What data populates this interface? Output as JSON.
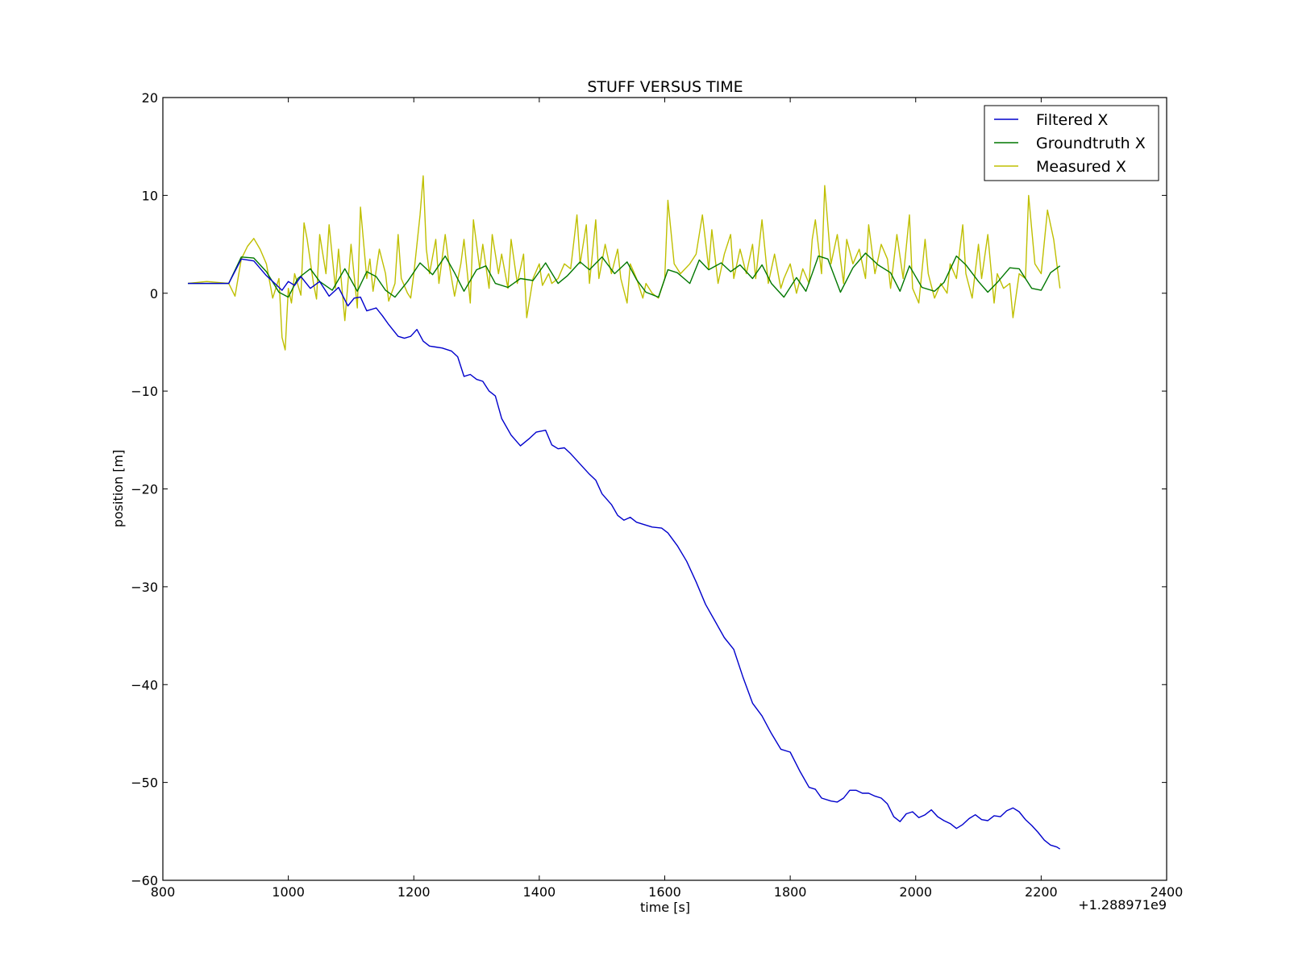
{
  "chart_data": {
    "type": "line",
    "title": "STUFF VERSUS TIME",
    "xlabel": "time [s]",
    "ylabel": "position [m]",
    "x_offset_label": "+1.288971e9",
    "xlim": [
      800,
      2400
    ],
    "ylim": [
      -60,
      20
    ],
    "x_ticks": [
      800,
      1000,
      1200,
      1400,
      1600,
      1800,
      2000,
      2200,
      2400
    ],
    "x_tick_labels": [
      "800",
      "1000",
      "1200",
      "1400",
      "1600",
      "1800",
      "2000",
      "2200",
      "2400"
    ],
    "y_ticks": [
      20,
      10,
      0,
      -10,
      -20,
      -30,
      -40,
      -50,
      -60
    ],
    "y_tick_labels": [
      "20",
      "10",
      "0",
      "−10",
      "−20",
      "−30",
      "−40",
      "−50",
      "−60"
    ],
    "grid": false,
    "legend_position": "top-right",
    "series": [
      {
        "name": "Filtered X",
        "color": "#0000cc",
        "x": [
          840,
          905,
          925,
          945,
          965,
          980,
          990,
          1000,
          1010,
          1020,
          1035,
          1050,
          1065,
          1080,
          1095,
          1105,
          1115,
          1125,
          1140,
          1150,
          1160,
          1175,
          1185,
          1195,
          1205,
          1215,
          1225,
          1235,
          1245,
          1260,
          1270,
          1280,
          1290,
          1300,
          1310,
          1320,
          1330,
          1340,
          1355,
          1370,
          1385,
          1395,
          1410,
          1420,
          1430,
          1440,
          1450,
          1470,
          1480,
          1490,
          1500,
          1515,
          1525,
          1535,
          1545,
          1555,
          1570,
          1580,
          1595,
          1605,
          1620,
          1635,
          1650,
          1665,
          1680,
          1695,
          1710,
          1725,
          1740,
          1755,
          1770,
          1785,
          1800,
          1815,
          1830,
          1840,
          1850,
          1865,
          1875,
          1885,
          1895,
          1905,
          1915,
          1925,
          1935,
          1945,
          1955,
          1965,
          1975,
          1985,
          1995,
          2005,
          2015,
          2025,
          2035,
          2045,
          2055,
          2065,
          2075,
          2085,
          2095,
          2105,
          2115,
          2125,
          2135,
          2145,
          2155,
          2165,
          2175,
          2185,
          2195,
          2205,
          2215,
          2225,
          2230
        ],
        "y": [
          1,
          1,
          3.5,
          3.3,
          1.8,
          0.9,
          0.3,
          1.2,
          0.8,
          1.7,
          0.5,
          1.2,
          -0.3,
          0.6,
          -1.3,
          -0.5,
          -0.4,
          -1.8,
          -1.5,
          -2.3,
          -3.2,
          -4.4,
          -4.6,
          -4.4,
          -3.7,
          -4.9,
          -5.4,
          -5.5,
          -5.6,
          -5.9,
          -6.5,
          -8.5,
          -8.3,
          -8.8,
          -9.0,
          -10.0,
          -10.5,
          -12.8,
          -14.5,
          -15.6,
          -14.8,
          -14.2,
          -14.0,
          -15.5,
          -15.9,
          -15.8,
          -16.4,
          -17.8,
          -18.5,
          -19.1,
          -20.5,
          -21.6,
          -22.7,
          -23.2,
          -22.9,
          -23.4,
          -23.7,
          -23.9,
          -24.0,
          -24.5,
          -25.8,
          -27.4,
          -29.5,
          -31.8,
          -33.5,
          -35.2,
          -36.4,
          -39.3,
          -41.9,
          -43.2,
          -45.0,
          -46.6,
          -46.9,
          -48.8,
          -50.5,
          -50.7,
          -51.6,
          -51.9,
          -52.0,
          -51.6,
          -50.8,
          -50.8,
          -51.1,
          -51.1,
          -51.4,
          -51.6,
          -52.2,
          -53.5,
          -54.0,
          -53.2,
          -53.0,
          -53.6,
          -53.3,
          -52.8,
          -53.5,
          -53.9,
          -54.2,
          -54.7,
          -54.3,
          -53.7,
          -53.3,
          -53.8,
          -53.9,
          -53.4,
          -53.5,
          -52.9,
          -52.6,
          -53.0,
          -53.8,
          -54.4,
          -55.1,
          -55.9,
          -56.4,
          -56.6,
          -56.8
        ],
        "filtered_note": ""
      },
      {
        "name": "Groundtruth X",
        "color": "#007700",
        "x": [
          840,
          905,
          925,
          945,
          965,
          985,
          1000,
          1015,
          1035,
          1050,
          1070,
          1090,
          1110,
          1125,
          1140,
          1155,
          1170,
          1190,
          1210,
          1230,
          1250,
          1265,
          1280,
          1300,
          1315,
          1330,
          1350,
          1370,
          1390,
          1410,
          1430,
          1445,
          1465,
          1480,
          1500,
          1520,
          1540,
          1555,
          1570,
          1590,
          1605,
          1620,
          1640,
          1655,
          1670,
          1690,
          1705,
          1720,
          1740,
          1755,
          1770,
          1790,
          1810,
          1825,
          1845,
          1860,
          1880,
          1900,
          1920,
          1940,
          1960,
          1975,
          1990,
          2010,
          2030,
          2045,
          2065,
          2080,
          2100,
          2115,
          2130,
          2150,
          2165,
          2185,
          2200,
          2215,
          2230
        ],
        "y": [
          1,
          1,
          3.7,
          3.6,
          2.2,
          0.1,
          -0.4,
          1.5,
          2.5,
          1.2,
          0.3,
          2.5,
          0.2,
          2.2,
          1.7,
          0.3,
          -0.4,
          1.2,
          3.1,
          1.9,
          3.8,
          2.1,
          0.2,
          2.4,
          2.8,
          1.0,
          0.6,
          1.5,
          1.3,
          3.1,
          1.0,
          1.8,
          3.2,
          2.4,
          3.7,
          2.0,
          3.2,
          1.4,
          0.1,
          -0.4,
          2.4,
          2.1,
          1.0,
          3.4,
          2.4,
          3.1,
          2.2,
          2.9,
          1.5,
          2.9,
          1.0,
          -0.4,
          1.6,
          0.2,
          3.8,
          3.5,
          0.1,
          2.6,
          4.1,
          2.9,
          2.1,
          0.2,
          2.8,
          0.6,
          0.2,
          1.1,
          3.8,
          2.9,
          1.2,
          0.1,
          1.1,
          2.6,
          2.5,
          0.5,
          0.3,
          2.1,
          2.8
        ],
        "filtered_note": ""
      },
      {
        "name": "Measured X",
        "color": "#bfbf00",
        "x": [
          840,
          870,
          905,
          915,
          925,
          935,
          945,
          955,
          965,
          975,
          985,
          990,
          995,
          1000,
          1005,
          1010,
          1020,
          1025,
          1030,
          1040,
          1045,
          1050,
          1060,
          1065,
          1075,
          1080,
          1090,
          1095,
          1100,
          1110,
          1115,
          1125,
          1130,
          1135,
          1145,
          1155,
          1160,
          1170,
          1175,
          1180,
          1190,
          1195,
          1200,
          1210,
          1215,
          1220,
          1225,
          1235,
          1240,
          1250,
          1255,
          1265,
          1275,
          1280,
          1290,
          1295,
          1305,
          1310,
          1320,
          1325,
          1335,
          1340,
          1350,
          1355,
          1365,
          1375,
          1380,
          1390,
          1400,
          1405,
          1415,
          1420,
          1430,
          1440,
          1450,
          1460,
          1465,
          1475,
          1480,
          1490,
          1495,
          1505,
          1515,
          1525,
          1530,
          1540,
          1545,
          1555,
          1565,
          1570,
          1580,
          1590,
          1600,
          1605,
          1615,
          1625,
          1640,
          1650,
          1660,
          1670,
          1675,
          1685,
          1695,
          1705,
          1710,
          1720,
          1730,
          1740,
          1745,
          1755,
          1765,
          1775,
          1785,
          1790,
          1800,
          1810,
          1820,
          1830,
          1835,
          1840,
          1850,
          1855,
          1865,
          1875,
          1885,
          1890,
          1900,
          1910,
          1920,
          1925,
          1935,
          1945,
          1955,
          1960,
          1970,
          1980,
          1990,
          1995,
          2005,
          2015,
          2020,
          2030,
          2040,
          2050,
          2055,
          2065,
          2075,
          2080,
          2090,
          2100,
          2105,
          2115,
          2125,
          2130,
          2140,
          2150,
          2155,
          2165,
          2175,
          2180,
          2190,
          2200,
          2210,
          2215,
          2220,
          2225,
          2230
        ],
        "y": [
          1,
          1.2,
          1,
          -0.3,
          3.5,
          4.8,
          5.6,
          4.5,
          3.0,
          -0.5,
          1.5,
          -4.5,
          -5.8,
          0.5,
          -1.0,
          2.0,
          -0.2,
          7.2,
          5.5,
          1.0,
          -0.6,
          6.0,
          2.0,
          7.0,
          0.5,
          4.5,
          -2.8,
          1.0,
          5.0,
          -1.5,
          8.8,
          1.5,
          3.5,
          0.2,
          4.5,
          2.0,
          -0.8,
          1.0,
          6.0,
          1.5,
          0.0,
          -0.5,
          2.0,
          8.0,
          12.0,
          4.5,
          2.0,
          5.5,
          1.0,
          6.0,
          3.5,
          -0.3,
          3.0,
          5.5,
          -1.0,
          7.5,
          2.5,
          5.0,
          0.5,
          6.0,
          2.0,
          4.0,
          0.5,
          5.5,
          1.0,
          4.0,
          -2.5,
          1.5,
          3.0,
          0.8,
          2.0,
          1.0,
          1.5,
          3.0,
          2.5,
          8.0,
          3.0,
          7.0,
          1.0,
          7.5,
          1.5,
          5.0,
          2.0,
          4.5,
          1.5,
          -1.0,
          3.0,
          1.5,
          -0.5,
          1.0,
          0.0,
          -0.5,
          1.5,
          9.5,
          3.0,
          2.0,
          3.0,
          4.0,
          8.0,
          2.5,
          6.5,
          1.0,
          4.0,
          6.0,
          1.5,
          4.5,
          2.0,
          5.0,
          1.5,
          7.5,
          1.0,
          4.0,
          0.5,
          1.5,
          3.0,
          0.0,
          2.5,
          1.0,
          5.5,
          7.5,
          2.0,
          11.0,
          3.0,
          6.0,
          1.0,
          5.5,
          3.0,
          4.5,
          1.5,
          7.0,
          2.0,
          5.0,
          3.5,
          0.5,
          6.0,
          1.5,
          8.0,
          0.5,
          -1.0,
          5.5,
          2.0,
          -0.5,
          1.0,
          0.0,
          3.0,
          1.5,
          7.0,
          2.0,
          -0.5,
          5.0,
          1.5,
          6.0,
          -1.0,
          2.0,
          0.5,
          1.0,
          -2.5,
          2.0,
          1.5,
          10.0,
          3.0,
          2.0,
          8.5,
          7.0,
          5.5,
          3.0,
          0.5
        ],
        "filtered_note": ""
      }
    ]
  }
}
